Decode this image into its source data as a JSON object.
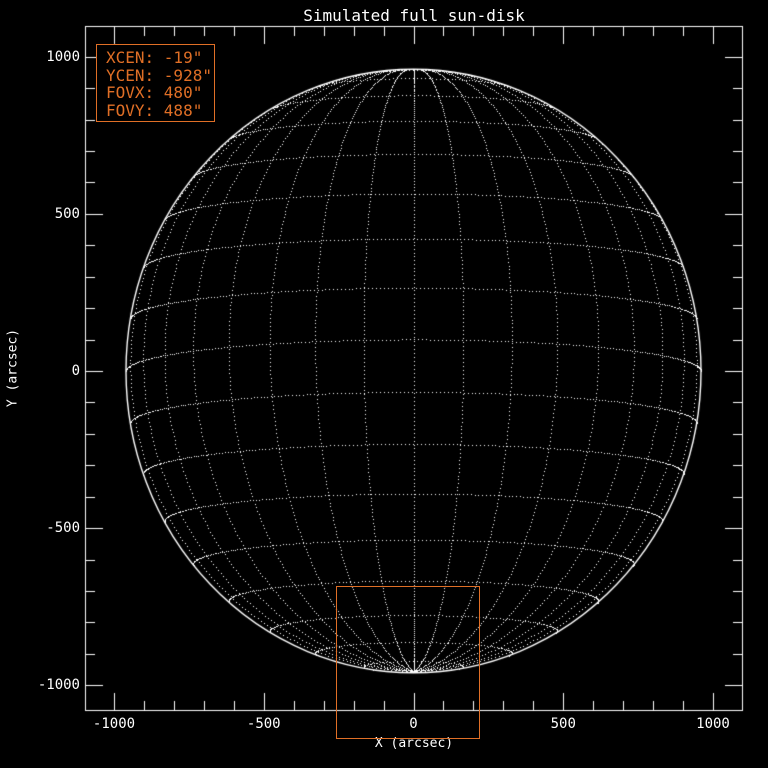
{
  "title": "Simulated full sun-disk",
  "axes": {
    "x": {
      "label": "X (arcsec)",
      "major_ticks": [
        -1000,
        -500,
        0,
        500,
        1000
      ],
      "tick_labels": [
        "-1000",
        "-500",
        "0",
        "500",
        "1000"
      ],
      "minor_tick_step": 100,
      "range": [
        -1100,
        1100
      ]
    },
    "y": {
      "label": "Y (arcsec)",
      "major_ticks": [
        1000,
        500,
        0,
        -500,
        -1000
      ],
      "tick_labels": [
        "1000",
        "500",
        "0",
        "-500",
        "-1000"
      ],
      "minor_tick_step": 100,
      "range": [
        -1100,
        1100
      ]
    }
  },
  "legend": {
    "lines": [
      "XCEN: -19\"",
      "YCEN: -928\"",
      "FOVX: 480\"",
      "FOVY: 488\""
    ]
  },
  "colors": {
    "background": "#000000",
    "foreground": "#ffffff",
    "accent": "#e06f26"
  },
  "chart_data": {
    "type": "line",
    "title": "Simulated full sun-disk",
    "xlabel": "X (arcsec)",
    "ylabel": "Y (arcsec)",
    "xlim": [
      -1100,
      1100
    ],
    "ylim": [
      -1100,
      1100
    ],
    "x_ticks": [
      -1000,
      -500,
      0,
      500,
      1000
    ],
    "y_ticks": [
      -1000,
      -500,
      0,
      500,
      1000
    ],
    "grid": false,
    "solar_disk": {
      "center_arcsec": [
        0,
        0
      ],
      "radius_arcsec": 960,
      "grid_spacing_deg": 10,
      "tilt_b0_deg": -6,
      "style": "dotted-wireframe",
      "limb_style": "solid"
    },
    "fov_box": {
      "xcen_arcsec": -19,
      "ycen_arcsec": -928,
      "fovx_arcsec": 480,
      "fovy_arcsec": 488
    },
    "annotations": [
      "XCEN: -19\"",
      "YCEN: -928\"",
      "FOVX: 480\"",
      "FOVY: 488\""
    ]
  }
}
